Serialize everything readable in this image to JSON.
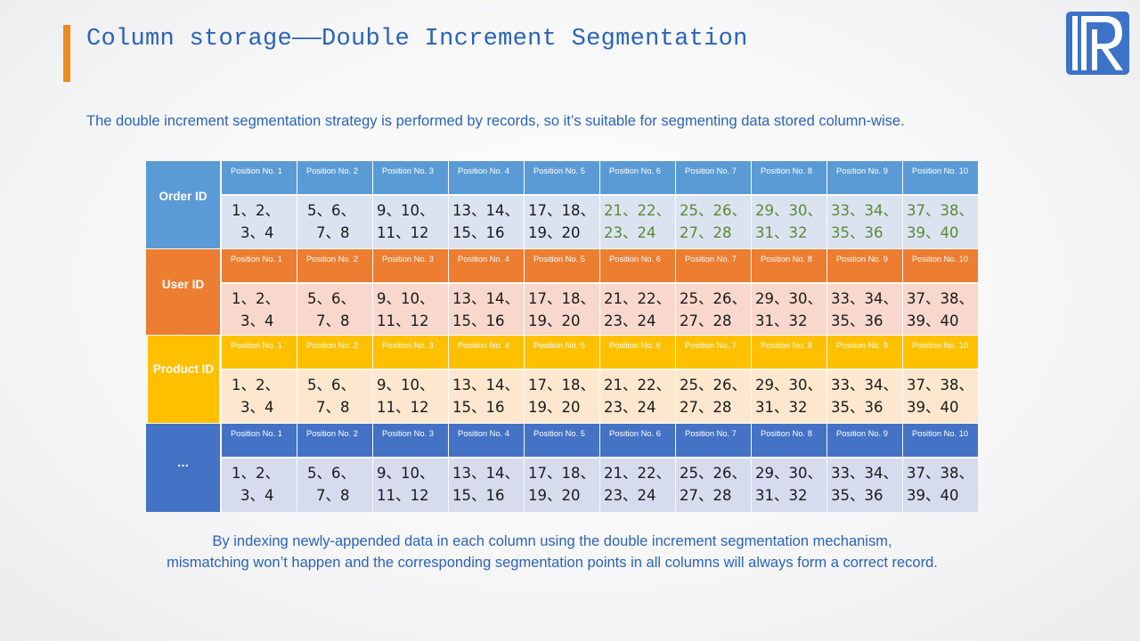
{
  "slide": {
    "title": "Column storage——Double Increment Segmentation",
    "subtitle": "The double increment segmentation strategy is performed by records, so it’s suitable for segmenting data stored column-wise.",
    "footer_line1": "By indexing newly-appended data in each column using the double increment segmentation mechanism,",
    "footer_line2": "mismatching won’t happen and the corresponding segmentation points in all columns will always form a correct record.",
    "logo_icon": "r-logo-icon"
  },
  "positions": [
    "Position No. 1",
    "Position No. 2",
    "Position No. 3",
    "Position No. 4",
    "Position No. 5",
    "Position No. 6",
    "Position No. 7",
    "Position No. 8",
    "Position No. 9",
    "Position No. 10"
  ],
  "cells": [
    {
      "line1": "1、2、",
      "line2": "3、4"
    },
    {
      "line1": "5、6、",
      "line2": "7、8"
    },
    {
      "line1": "9、10、",
      "line2": "11、12"
    },
    {
      "line1": "13、14、",
      "line2": "15、16"
    },
    {
      "line1": "17、18、",
      "line2": "19、20"
    },
    {
      "line1": "21、22、",
      "line2": "23、24"
    },
    {
      "line1": "25、26、",
      "line2": "27、28"
    },
    {
      "line1": "29、30、",
      "line2": "31、32"
    },
    {
      "line1": "33、34、",
      "line2": "35、36"
    },
    {
      "line1": "37、38、",
      "line2": "39、40"
    }
  ],
  "columns": [
    {
      "label": "Order ID",
      "color": "#5b9bd5",
      "data_bg": "#dbe3f1",
      "highlight_from": 5,
      "highlight_color": "#5a8a32"
    },
    {
      "label": "User ID",
      "color": "#ed7d31",
      "data_bg": "#f8d8cc",
      "highlight_from": 10,
      "highlight_color": "#5a8a32"
    },
    {
      "label": "Product ID",
      "color": "#ffc000",
      "data_bg": "#fde8cf",
      "highlight_from": 10,
      "highlight_color": "#5a8a32"
    },
    {
      "label": "…",
      "color": "#4472c4",
      "data_bg": "#d7dbee",
      "highlight_from": 10,
      "highlight_color": "#5a8a32"
    }
  ]
}
